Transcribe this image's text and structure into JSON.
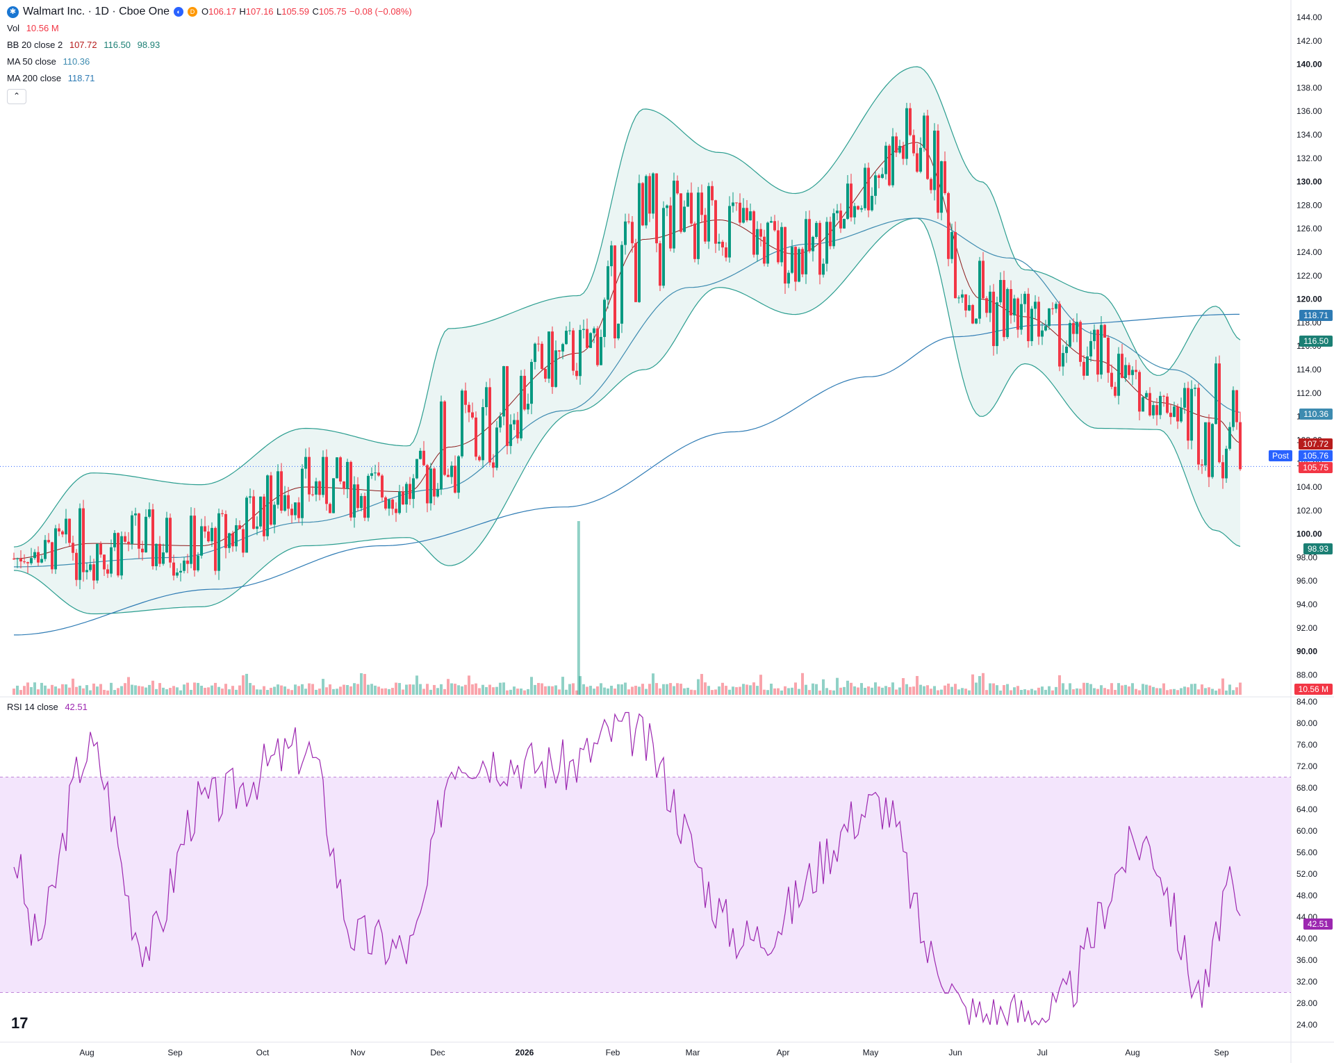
{
  "header": {
    "title": "Walmart Inc. · 1D · Cboe One",
    "open_label": "O",
    "open": "106.17",
    "high_label": "H",
    "high": "107.16",
    "low_label": "L",
    "low": "105.59",
    "close_label": "C",
    "close": "105.75",
    "change": "−0.08 (−0.08%)"
  },
  "legend": {
    "vol_label": "Vol",
    "vol_value": "10.56 M",
    "bb_label": "BB 20 close 2",
    "bb_mid": "107.72",
    "bb_upper": "116.50",
    "bb_lower": "98.93",
    "ma50_label": "MA 50 close",
    "ma50_value": "110.36",
    "ma200_label": "MA 200 close",
    "ma200_value": "118.71",
    "rsi_label": "RSI 14 close",
    "rsi_value": "42.51"
  },
  "price_axis": {
    "ticks": [
      "144.00",
      "142.00",
      "140.00",
      "138.00",
      "136.00",
      "134.00",
      "132.00",
      "130.00",
      "128.00",
      "126.00",
      "124.00",
      "122.00",
      "120.00",
      "118.00",
      "116.00",
      "114.00",
      "112.00",
      "110.00",
      "108.00",
      "106.00",
      "104.00",
      "102.00",
      "100.00",
      "98.00",
      "96.00",
      "94.00",
      "92.00",
      "90.00",
      "88.00"
    ],
    "bold_ticks": [
      "140.00",
      "130.00",
      "120.00",
      "100.00",
      "90.00"
    ]
  },
  "rsi_axis": {
    "ticks": [
      "84.00",
      "80.00",
      "76.00",
      "72.00",
      "68.00",
      "64.00",
      "60.00",
      "56.00",
      "52.00",
      "48.00",
      "44.00",
      "40.00",
      "36.00",
      "32.00",
      "28.00",
      "24.00"
    ]
  },
  "time_axis": {
    "labels": [
      "Aug",
      "Sep",
      "Oct",
      "Nov",
      "Dec",
      "2026",
      "Feb",
      "Mar",
      "Apr",
      "May",
      "Jun",
      "Jul",
      "Aug",
      "Sep"
    ],
    "bold_labels": [
      "2026"
    ]
  },
  "pills": {
    "ma200": "118.71",
    "bb_upper": "116.50",
    "ma50": "110.36",
    "bb_mid": "107.72",
    "post_price": "105.76",
    "last_price": "105.75",
    "bb_lower": "98.93",
    "volume": "10.56 M",
    "rsi": "42.51",
    "post_label": "Post"
  },
  "colors": {
    "up": "#089981",
    "down": "#f23645",
    "bb_band": "#2a9d8f",
    "bb_basis": "#8b1a1a",
    "ma50": "#3d8bb0",
    "ma200": "#2e7bb4",
    "rsi_line": "#9c27b0",
    "rsi_fill": "#f3e5fc",
    "price_pill_dark": "#b71c1c",
    "ma50_pill": "#3d8bb0",
    "ma200_pill": "#2e7bb4"
  },
  "chart_data": {
    "type": "candlestick",
    "symbol": "Walmart Inc.",
    "interval": "1D",
    "price_range": [
      88,
      144
    ],
    "rsi_range": [
      22,
      86
    ],
    "rsi_bands": [
      30,
      70
    ],
    "last": {
      "open": 106.17,
      "high": 107.16,
      "low": 105.59,
      "close": 105.75,
      "volume": "10.56 M"
    },
    "bb_key_points": [
      {
        "date": "2025-07-01",
        "upper": 98.9,
        "lower": 96.9
      },
      {
        "date": "2025-08-03",
        "upper": 105.2,
        "lower": 93.2
      },
      {
        "date": "2025-09-10",
        "upper": 104.2,
        "lower": 93.8
      },
      {
        "date": "2025-10-15",
        "upper": 109.0,
        "lower": 99.0
      },
      {
        "date": "2025-11-20",
        "upper": 107.5,
        "lower": 99.7
      },
      {
        "date": "2025-12-05",
        "upper": 117.5,
        "lower": 97.3
      },
      {
        "date": "2026-01-20",
        "upper": 120.3,
        "lower": 110.5
      },
      {
        "date": "2026-02-12",
        "upper": 136.2,
        "lower": 114.0
      },
      {
        "date": "2026-03-10",
        "upper": 132.5,
        "lower": 121.0
      },
      {
        "date": "2026-04-05",
        "upper": 129.0,
        "lower": 118.7
      },
      {
        "date": "2026-05-18",
        "upper": 139.8,
        "lower": 126.9
      },
      {
        "date": "2026-06-10",
        "upper": 130.0,
        "lower": 110.0
      },
      {
        "date": "2026-06-25",
        "upper": 122.5,
        "lower": 114.5
      },
      {
        "date": "2026-07-20",
        "upper": 120.5,
        "lower": 109.0
      },
      {
        "date": "2026-08-10",
        "upper": 113.5,
        "lower": 108.9
      },
      {
        "date": "2026-08-30",
        "upper": 119.4,
        "lower": 100.3
      },
      {
        "date": "2026-09-08",
        "upper": 116.5,
        "lower": 98.93
      }
    ],
    "ma200_key_points": [
      {
        "date": "2025-07-01",
        "value": 91.4
      },
      {
        "date": "2025-09-15",
        "value": 95.3
      },
      {
        "date": "2025-11-10",
        "value": 99.0
      },
      {
        "date": "2026-01-15",
        "value": 102.3
      },
      {
        "date": "2026-03-15",
        "value": 108.7
      },
      {
        "date": "2026-05-01",
        "value": 113.4
      },
      {
        "date": "2026-06-01",
        "value": 116.8
      },
      {
        "date": "2026-07-01",
        "value": 117.8
      },
      {
        "date": "2026-09-08",
        "value": 118.71
      }
    ],
    "ma50_key_points": [
      {
        "date": "2025-07-01",
        "value": 97.2
      },
      {
        "date": "2025-09-01",
        "value": 98.0
      },
      {
        "date": "2025-10-15",
        "value": 101.0
      },
      {
        "date": "2025-12-01",
        "value": 103.8
      },
      {
        "date": "2026-01-15",
        "value": 110.5
      },
      {
        "date": "2026-02-28",
        "value": 121.0
      },
      {
        "date": "2026-04-10",
        "value": 124.7
      },
      {
        "date": "2026-05-18",
        "value": 126.9
      },
      {
        "date": "2026-06-20",
        "value": 123.5
      },
      {
        "date": "2026-07-20",
        "value": 117.0
      },
      {
        "date": "2026-08-15",
        "value": 114.0
      },
      {
        "date": "2026-09-08",
        "value": 110.36
      }
    ],
    "rsi_key_points": [
      {
        "date": "2025-07-01",
        "value": 55
      },
      {
        "date": "2025-07-10",
        "value": 40
      },
      {
        "date": "2025-08-02",
        "value": 75
      },
      {
        "date": "2025-08-22",
        "value": 39
      },
      {
        "date": "2025-09-10",
        "value": 65
      },
      {
        "date": "2025-10-15",
        "value": 75
      },
      {
        "date": "2025-11-01",
        "value": 40
      },
      {
        "date": "2025-11-20",
        "value": 38
      },
      {
        "date": "2025-12-08",
        "value": 74
      },
      {
        "date": "2026-01-15",
        "value": 72
      },
      {
        "date": "2026-02-05",
        "value": 79
      },
      {
        "date": "2026-03-20",
        "value": 40
      },
      {
        "date": "2026-05-05",
        "value": 65
      },
      {
        "date": "2026-05-25",
        "value": 36
      },
      {
        "date": "2026-06-05",
        "value": 26
      },
      {
        "date": "2026-07-03",
        "value": 26
      },
      {
        "date": "2026-08-05",
        "value": 58
      },
      {
        "date": "2026-08-26",
        "value": 30
      },
      {
        "date": "2026-09-03",
        "value": 49
      },
      {
        "date": "2026-09-08",
        "value": 42.51
      }
    ]
  }
}
